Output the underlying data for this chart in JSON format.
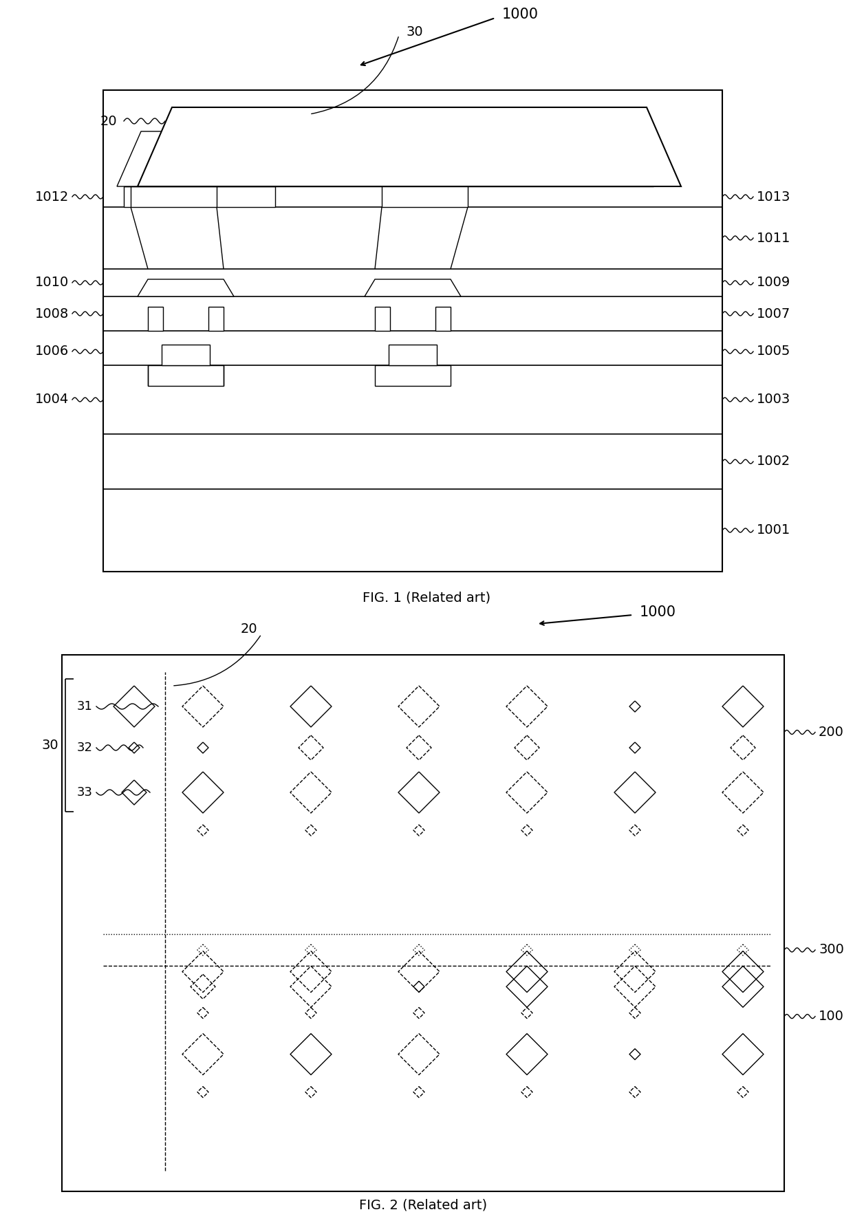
{
  "fig1": {
    "title": "FIG. 1 (Related art)",
    "label_1000": "1000",
    "label_20": "20",
    "label_30": "30",
    "label_1001": "1001",
    "label_1002": "1002",
    "label_1003": "1003",
    "label_1004": "1004",
    "label_1005": "1005",
    "label_1006": "1006",
    "label_1007": "1007",
    "label_1008": "1008",
    "label_1009": "1009",
    "label_1010": "1010",
    "label_1011": "1011",
    "label_1012": "1012",
    "label_1013": "1013"
  },
  "fig2": {
    "title": "FIG. 2 (Related art)",
    "label_1000": "1000",
    "label_20": "20",
    "label_30": "30",
    "label_31": "31",
    "label_32": "32",
    "label_33": "33",
    "label_100": "100",
    "label_200": "200",
    "label_300": "300"
  },
  "line_color": "#000000",
  "bg_color": "#ffffff",
  "fontsize_label": 14,
  "fontsize_caption": 14
}
